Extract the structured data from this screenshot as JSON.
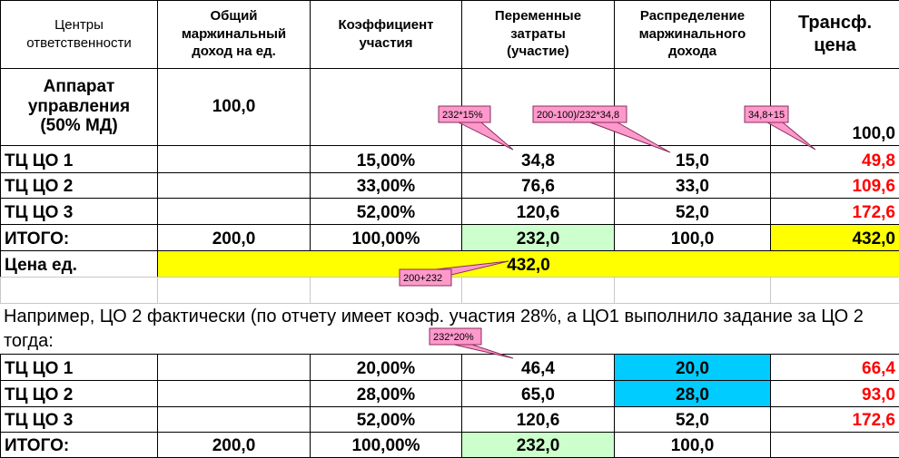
{
  "table": {
    "header": [
      "Центры\nответственности",
      "Общий\nмаржинальный\nдоход на ед.",
      "Коэффициент\nучастия",
      "Переменные\nзатраты\n(участие)",
      "Распределение\nмаржинального\nдохода",
      "Трансф.\nцена"
    ],
    "rows": [
      [
        "Аппарат\nуправления\n(50% МД)",
        "100,0",
        null,
        null,
        null,
        "100,0"
      ],
      [
        "ТЦ  ЦО 1",
        null,
        "15,00%",
        "34,8",
        "15,0",
        "49,8"
      ],
      [
        "ТЦ  ЦО 2",
        null,
        "33,00%",
        "76,6",
        "33,0",
        "109,6"
      ],
      [
        "ТЦ  ЦО 3",
        null,
        "52,00%",
        "120,6",
        "52,0",
        "172,6"
      ],
      [
        "ИТОГО:",
        "200,0",
        "100,00%",
        "232,0",
        "100,0",
        "432,0"
      ]
    ],
    "price_row": {
      "label": "Цена ед.",
      "value": "432,0"
    },
    "note": "Например, ЦО 2 фактически (по отчету имеет коэф. участия 28%, а ЦО1 выполнило задание за ЦО 2 тогда:",
    "rows2": [
      [
        "ТЦ  ЦО 1",
        null,
        "20,00%",
        "46,4",
        "20,0",
        "66,4"
      ],
      [
        "ТЦ  ЦО 2",
        null,
        "28,00%",
        "65,0",
        "28,0",
        "93,0"
      ],
      [
        "ТЦ  ЦО 3",
        null,
        "52,00%",
        "120,6",
        "52,0",
        "172,6"
      ],
      [
        "ИТОГО:",
        "200,0",
        "100,00%",
        "232,0",
        "100,0",
        null
      ]
    ]
  },
  "callouts": [
    "232*15%",
    "200-100)/232*34,8",
    "34,8+15",
    "200+232",
    "232*20%"
  ]
}
